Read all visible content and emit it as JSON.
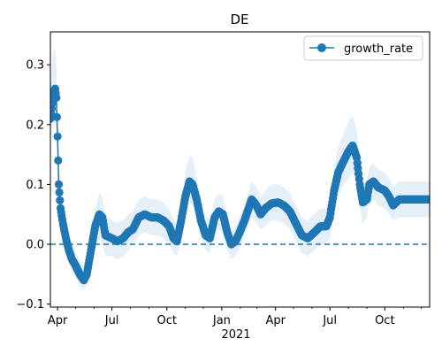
{
  "chart_data": {
    "type": "line",
    "title": "DE",
    "xlabel": "",
    "ylabel": "",
    "x_start": "2020-03-20",
    "x_end": "2021-12-15",
    "xlim": [
      "2020-03-20",
      "2021-12-15"
    ],
    "ylim": [
      -0.105,
      0.355
    ],
    "x_ticks": [
      {
        "date": "2020-04-01",
        "label": "Apr"
      },
      {
        "date": "2020-07-01",
        "label": "Jul"
      },
      {
        "date": "2020-10-01",
        "label": "Oct"
      },
      {
        "date": "2021-01-01",
        "label": "Jan"
      },
      {
        "date": "2021-04-01",
        "label": "Apr"
      },
      {
        "date": "2021-07-01",
        "label": "Jul"
      },
      {
        "date": "2021-10-01",
        "label": "Oct"
      }
    ],
    "x_minor_ticks": [
      "2020-05-01",
      "2020-06-01",
      "2020-08-01",
      "2020-09-01",
      "2020-11-01",
      "2020-12-01",
      "2021-02-01",
      "2021-03-01",
      "2021-05-01",
      "2021-06-01",
      "2021-08-01",
      "2021-09-01",
      "2021-11-01",
      "2021-12-01"
    ],
    "x_year_label": "2021",
    "y_ticks": [
      -0.1,
      0.0,
      0.1,
      0.2,
      0.3
    ],
    "y_tick_labels": [
      "−0.1",
      "0.0",
      "0.1",
      "0.2",
      "0.3"
    ],
    "reference_line": {
      "y": 0.0,
      "style": "dashed"
    },
    "legend": {
      "position": "top-right",
      "entries": [
        "growth_rate"
      ]
    },
    "grid": false,
    "series": [
      {
        "name": "growth_rate",
        "color": "#1f77b4",
        "band_color": "#dce9f5",
        "points": [
          [
            "2020-03-20",
            0.21,
            0.17,
            0.26
          ],
          [
            "2020-03-23",
            0.235,
            0.19,
            0.3
          ],
          [
            "2020-03-26",
            0.255,
            0.2,
            0.33
          ],
          [
            "2020-03-28",
            0.26,
            0.2,
            0.32
          ],
          [
            "2020-03-30",
            0.245,
            0.19,
            0.3
          ],
          [
            "2020-04-01",
            0.18,
            0.14,
            0.23
          ],
          [
            "2020-04-03",
            0.1,
            0.07,
            0.14
          ],
          [
            "2020-04-06",
            0.06,
            0.03,
            0.09
          ],
          [
            "2020-04-10",
            0.035,
            0.01,
            0.06
          ],
          [
            "2020-04-15",
            0.01,
            -0.015,
            0.035
          ],
          [
            "2020-04-20",
            -0.01,
            -0.03,
            0.01
          ],
          [
            "2020-04-25",
            -0.025,
            -0.045,
            0.0
          ],
          [
            "2020-05-01",
            -0.035,
            -0.055,
            -0.01
          ],
          [
            "2020-05-08",
            -0.05,
            -0.07,
            -0.03
          ],
          [
            "2020-05-15",
            -0.06,
            -0.075,
            -0.035
          ],
          [
            "2020-05-20",
            -0.05,
            -0.07,
            -0.025
          ],
          [
            "2020-05-27",
            -0.01,
            -0.04,
            0.02
          ],
          [
            "2020-06-03",
            0.03,
            -0.01,
            0.06
          ],
          [
            "2020-06-10",
            0.05,
            0.01,
            0.085
          ],
          [
            "2020-06-15",
            0.045,
            0.0,
            0.08
          ],
          [
            "2020-06-20",
            0.015,
            -0.02,
            0.05
          ],
          [
            "2020-07-01",
            0.01,
            -0.02,
            0.04
          ],
          [
            "2020-07-10",
            0.005,
            -0.025,
            0.035
          ],
          [
            "2020-07-20",
            0.01,
            -0.02,
            0.04
          ],
          [
            "2020-07-28",
            0.02,
            -0.01,
            0.05
          ],
          [
            "2020-08-05",
            0.025,
            0.0,
            0.055
          ],
          [
            "2020-08-15",
            0.045,
            0.015,
            0.075
          ],
          [
            "2020-08-25",
            0.05,
            0.02,
            0.08
          ],
          [
            "2020-09-05",
            0.045,
            0.015,
            0.075
          ],
          [
            "2020-09-15",
            0.045,
            0.015,
            0.075
          ],
          [
            "2020-09-25",
            0.04,
            0.01,
            0.07
          ],
          [
            "2020-10-05",
            0.03,
            0.0,
            0.06
          ],
          [
            "2020-10-12",
            0.01,
            -0.015,
            0.04
          ],
          [
            "2020-10-18",
            0.005,
            -0.02,
            0.035
          ],
          [
            "2020-10-25",
            0.04,
            0.01,
            0.07
          ],
          [
            "2020-11-01",
            0.08,
            0.045,
            0.12
          ],
          [
            "2020-11-08",
            0.105,
            0.07,
            0.15
          ],
          [
            "2020-11-13",
            0.1,
            0.065,
            0.145
          ],
          [
            "2020-11-20",
            0.075,
            0.045,
            0.11
          ],
          [
            "2020-11-27",
            0.04,
            0.01,
            0.075
          ],
          [
            "2020-12-05",
            0.015,
            -0.01,
            0.045
          ],
          [
            "2020-12-12",
            0.01,
            -0.015,
            0.04
          ],
          [
            "2020-12-20",
            0.045,
            0.015,
            0.075
          ],
          [
            "2020-12-27",
            0.055,
            0.025,
            0.085
          ],
          [
            "2021-01-03",
            0.05,
            0.02,
            0.08
          ],
          [
            "2021-01-10",
            0.02,
            -0.01,
            0.05
          ],
          [
            "2021-01-17",
            0.0,
            -0.025,
            0.025
          ],
          [
            "2021-01-24",
            0.005,
            -0.02,
            0.03
          ],
          [
            "2021-01-31",
            0.02,
            -0.005,
            0.045
          ],
          [
            "2021-02-08",
            0.04,
            0.015,
            0.065
          ],
          [
            "2021-02-15",
            0.06,
            0.03,
            0.09
          ],
          [
            "2021-02-20",
            0.075,
            0.045,
            0.105
          ],
          [
            "2021-02-28",
            0.065,
            0.035,
            0.095
          ],
          [
            "2021-03-07",
            0.05,
            0.025,
            0.08
          ],
          [
            "2021-03-15",
            0.06,
            0.03,
            0.09
          ],
          [
            "2021-03-25",
            0.068,
            0.04,
            0.1
          ],
          [
            "2021-04-05",
            0.07,
            0.04,
            0.1
          ],
          [
            "2021-04-15",
            0.065,
            0.035,
            0.095
          ],
          [
            "2021-04-25",
            0.055,
            0.025,
            0.085
          ],
          [
            "2021-05-05",
            0.035,
            0.005,
            0.065
          ],
          [
            "2021-05-15",
            0.015,
            -0.015,
            0.045
          ],
          [
            "2021-05-25",
            0.01,
            -0.02,
            0.04
          ],
          [
            "2021-06-05",
            0.02,
            -0.01,
            0.05
          ],
          [
            "2021-06-15",
            0.03,
            0.0,
            0.06
          ],
          [
            "2021-06-25",
            0.03,
            0.0,
            0.06
          ],
          [
            "2021-07-01",
            0.045,
            0.01,
            0.08
          ],
          [
            "2021-07-08",
            0.09,
            0.05,
            0.13
          ],
          [
            "2021-07-15",
            0.12,
            0.08,
            0.165
          ],
          [
            "2021-07-22",
            0.135,
            0.095,
            0.18
          ],
          [
            "2021-08-01",
            0.155,
            0.11,
            0.205
          ],
          [
            "2021-08-08",
            0.165,
            0.12,
            0.215
          ],
          [
            "2021-08-15",
            0.145,
            0.1,
            0.19
          ],
          [
            "2021-08-20",
            0.1,
            0.06,
            0.14
          ],
          [
            "2021-08-25",
            0.07,
            0.035,
            0.1
          ],
          [
            "2021-09-01",
            0.075,
            0.045,
            0.105
          ],
          [
            "2021-09-05",
            0.1,
            0.07,
            0.13
          ],
          [
            "2021-09-12",
            0.105,
            0.075,
            0.135
          ],
          [
            "2021-09-20",
            0.095,
            0.065,
            0.125
          ],
          [
            "2021-10-01",
            0.09,
            0.06,
            0.12
          ],
          [
            "2021-10-08",
            0.08,
            0.05,
            0.11
          ],
          [
            "2021-10-15",
            0.065,
            0.04,
            0.095
          ],
          [
            "2021-10-25",
            0.075,
            0.045,
            0.105
          ],
          [
            "2021-11-05",
            0.075,
            0.045,
            0.105
          ],
          [
            "2021-12-15",
            0.075,
            0.045,
            0.105
          ]
        ]
      }
    ]
  }
}
